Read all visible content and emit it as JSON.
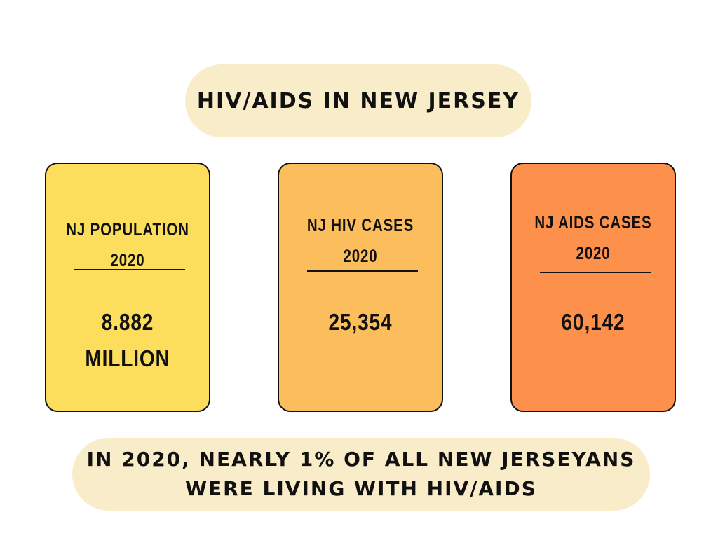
{
  "title": "HIV/AIDS IN NEW JERSEY",
  "cards": [
    {
      "label_line1": "NJ POPULATION",
      "label_line2": "2020",
      "value_line1": "8.882",
      "value_line2": "MILLION",
      "color": "#fddd5c"
    },
    {
      "label_line1": "NJ HIV CASES",
      "label_line2": "2020",
      "value_line1": "25,354",
      "color": "#fcbe5c"
    },
    {
      "label_line1": "NJ AIDS CASES",
      "label_line2": "2020",
      "value_line1": "60,142",
      "color": "#fd914c"
    }
  ],
  "footer": {
    "line1": "IN 2020, NEARLY 1% OF ALL NEW JERSEYANS",
    "line2": "WERE LIVING WITH HIV/AIDS"
  },
  "colors": {
    "pill_background": "#f9ecc9",
    "text": "#111111"
  }
}
